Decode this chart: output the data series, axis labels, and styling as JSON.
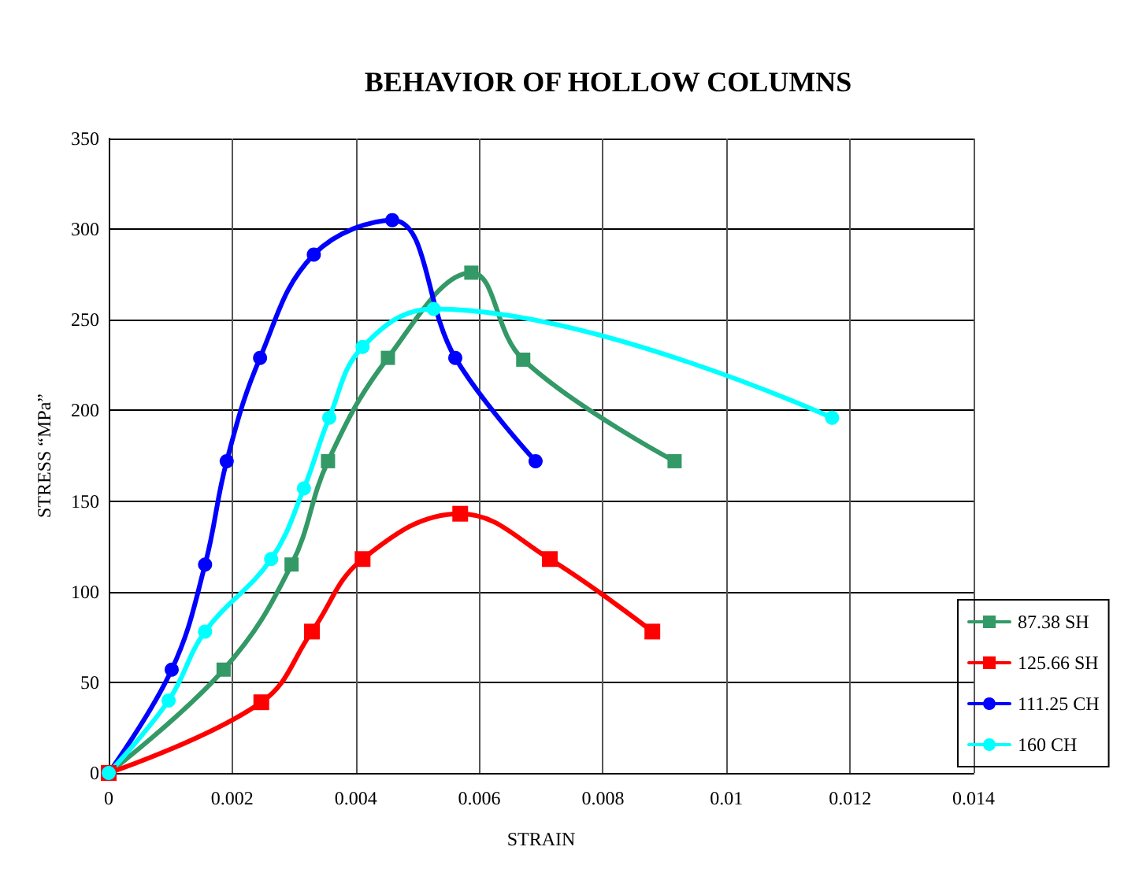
{
  "chart_data": {
    "type": "line",
    "title": "BEHAVIOR OF HOLLOW COLUMNS",
    "xlabel": "STRAIN",
    "ylabel": "STRESS “MPa”",
    "xlim": [
      0,
      0.014
    ],
    "xticks": [
      0,
      0.002,
      0.004,
      0.006,
      0.008,
      0.01,
      0.012,
      0.014
    ],
    "ylim": [
      0,
      350
    ],
    "yticks": [
      0,
      50,
      100,
      150,
      200,
      250,
      300,
      350
    ],
    "grid": true,
    "legend": "right",
    "line_style": "solid",
    "series": [
      {
        "name": "87.38 SH",
        "color": "#339966",
        "marker": "square",
        "x": [
          0,
          0.00186,
          0.00296,
          0.00355,
          0.00452,
          0.00587,
          0.00671,
          0.00916
        ],
        "values": [
          0,
          57,
          115,
          172,
          229,
          276,
          228,
          172
        ]
      },
      {
        "name": "125.66 SH",
        "color": "#ff0000",
        "marker": "square",
        "x": [
          0,
          0.00247,
          0.00329,
          0.00411,
          0.00569,
          0.00714,
          0.0088
        ],
        "values": [
          0,
          39,
          78,
          118,
          143,
          118,
          78
        ]
      },
      {
        "name": "111.25 CH",
        "color": "#0000ff",
        "marker": "circle",
        "x": [
          0,
          0.00102,
          0.00156,
          0.00191,
          0.00245,
          0.00332,
          0.00459,
          0.00561,
          0.00691
        ],
        "values": [
          0,
          57,
          115,
          172,
          229,
          286,
          305,
          229,
          172
        ]
      },
      {
        "name": "160 CH",
        "color": "#00ffff",
        "marker": "circle",
        "x": [
          0,
          0.00097,
          0.00156,
          0.00263,
          0.00316,
          0.00357,
          0.00411,
          0.00526,
          0.01171
        ],
        "values": [
          0,
          40,
          78,
          118,
          157,
          196,
          235,
          256,
          196
        ]
      }
    ]
  }
}
